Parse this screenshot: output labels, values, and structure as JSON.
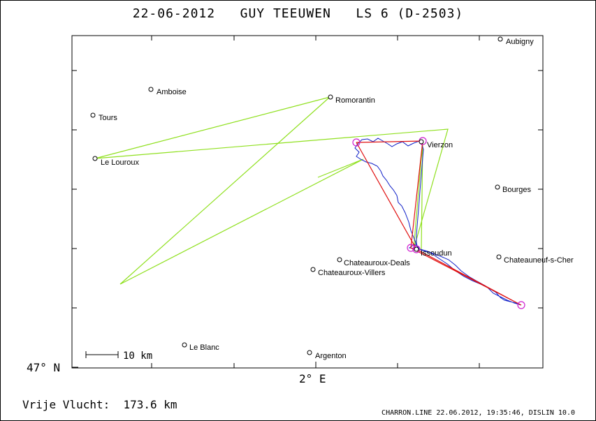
{
  "title": {
    "date": "22-06-2012",
    "pilot": "GUY TEEUWEN",
    "glider": "LS 6 (D-2503)"
  },
  "map": {
    "scale_bar_label": "10 km",
    "lat_label": "47° N",
    "lon_label": "2° E",
    "places": [
      {
        "name": "Aubigny"
      },
      {
        "name": "Amboise"
      },
      {
        "name": "Romorantin"
      },
      {
        "name": "Tours"
      },
      {
        "name": "Le Louroux"
      },
      {
        "name": "Vierzon"
      },
      {
        "name": "Bourges"
      },
      {
        "name": "Issoudun"
      },
      {
        "name": "Chateauroux-Deals"
      },
      {
        "name": "Chateauneuf-s-Cher"
      },
      {
        "name": "Chateauroux-Villers"
      },
      {
        "name": "Le Blanc"
      },
      {
        "name": "Argenton"
      }
    ],
    "colors": {
      "task": "#8fe01e",
      "flight_track": "#1020c8",
      "free_flight": "#e01010",
      "turnpoints": "#d020d0"
    }
  },
  "footer": {
    "distance_label": "Vrije Vlucht:",
    "distance_value": "173.6 km",
    "credits": "CHARRON.LINE 22.06.2012, 19:35:46, DISLIN 10.0"
  }
}
